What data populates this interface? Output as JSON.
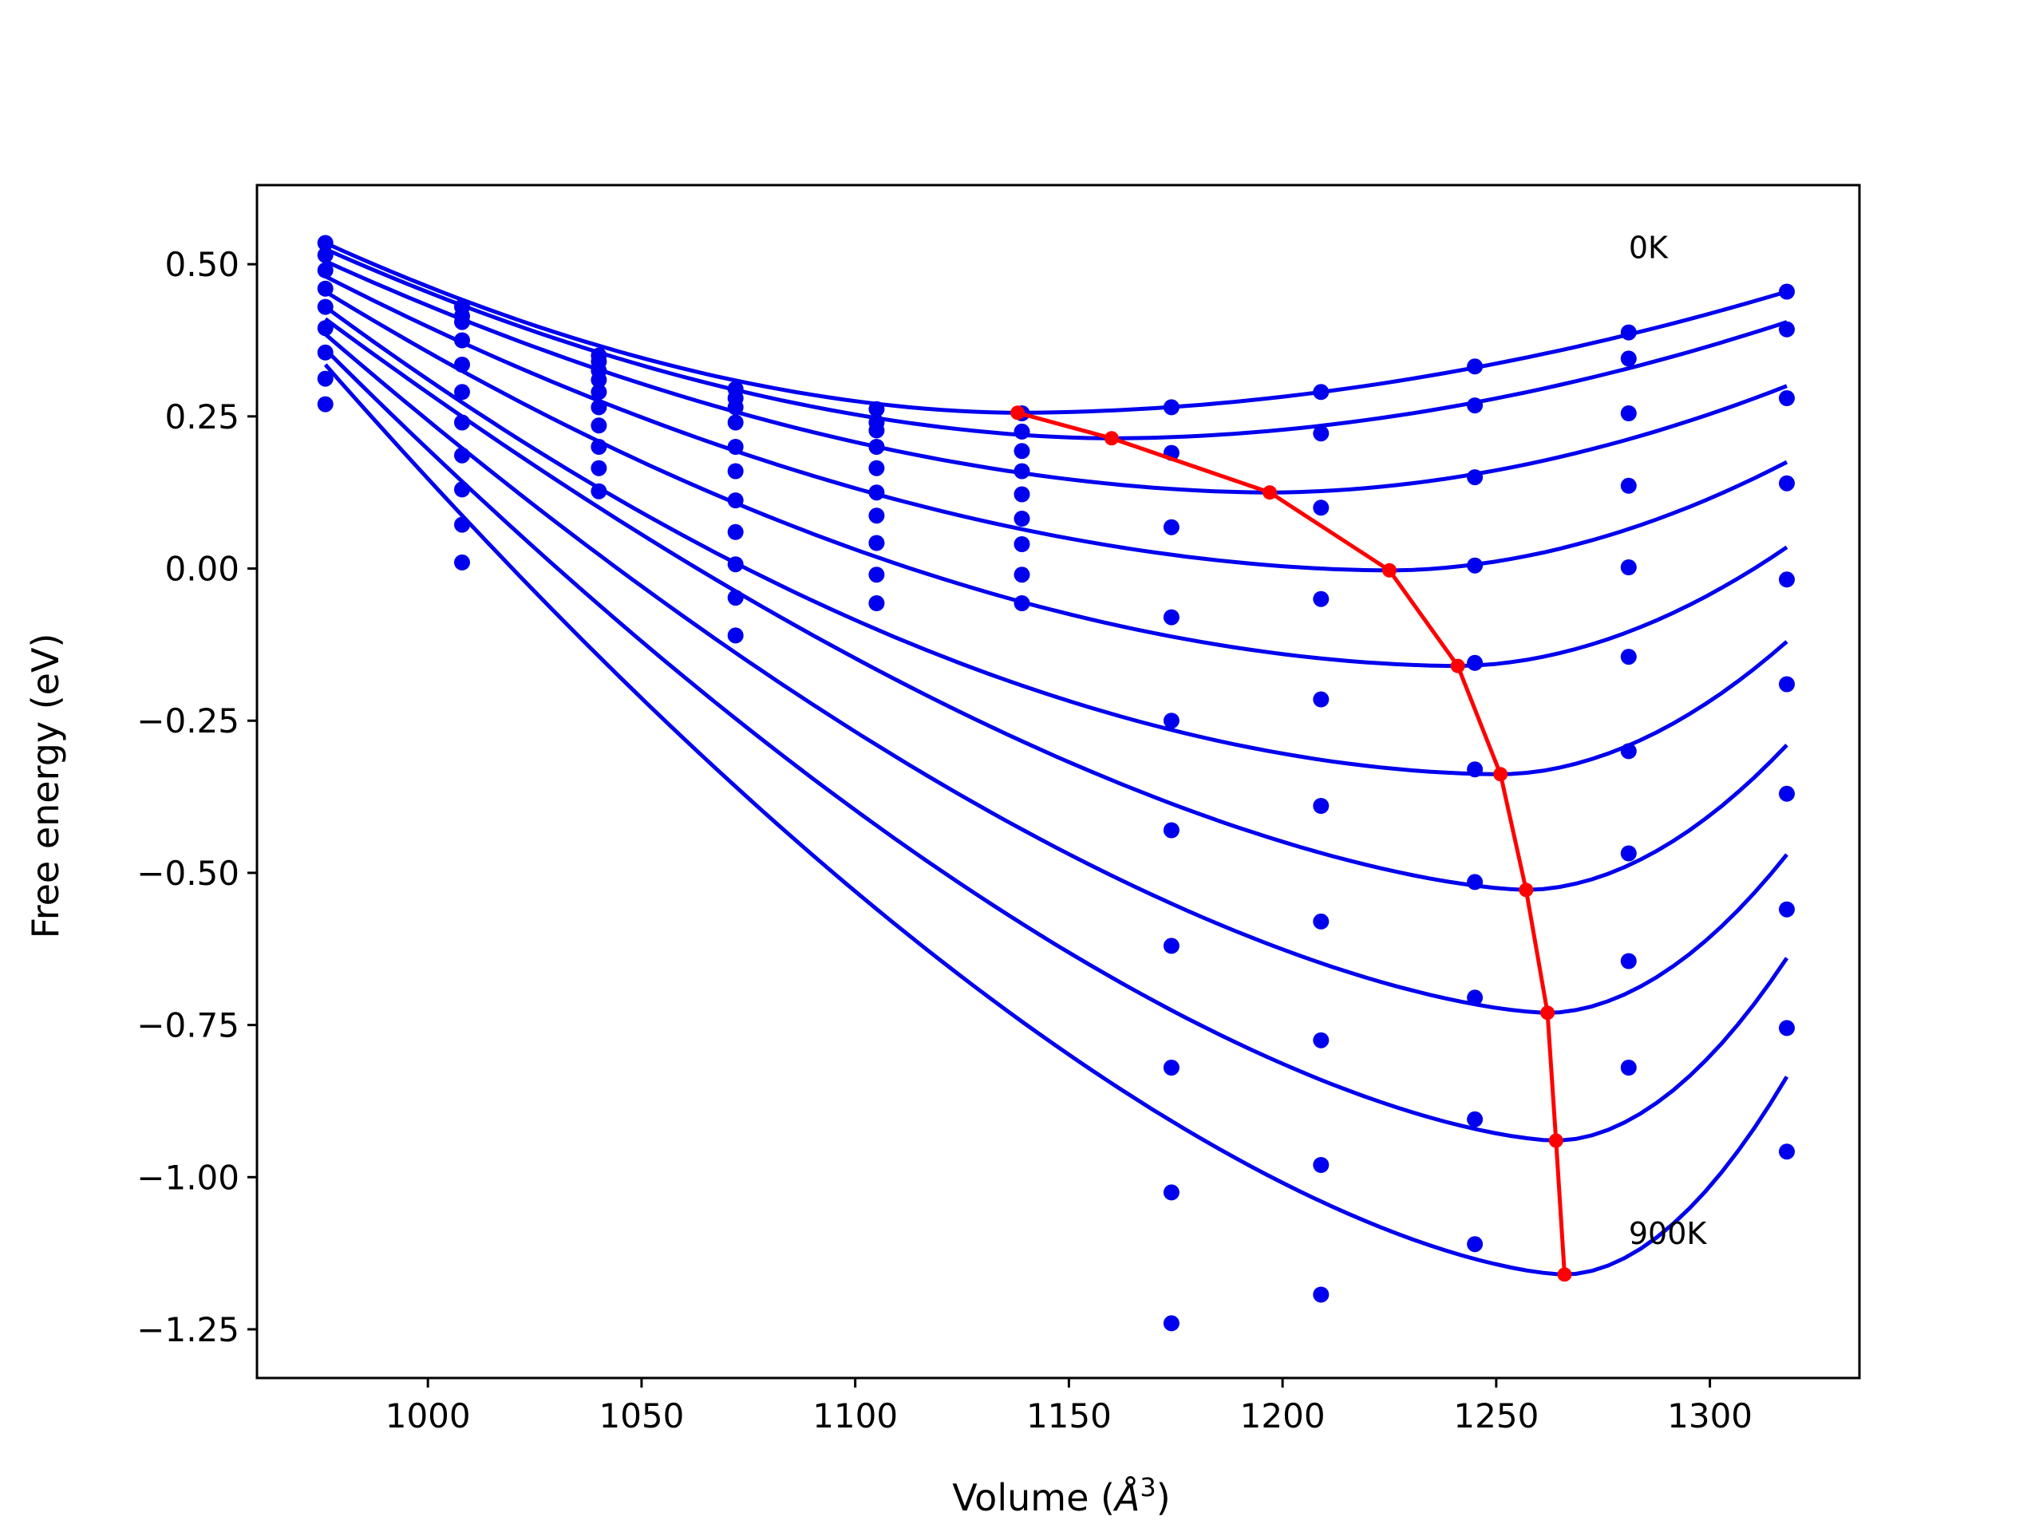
{
  "chart_data": {
    "type": "line",
    "xlabel_main": "Volume (",
    "xlabel_unit": "Å",
    "xlabel_exp": "3",
    "xlabel_close": ")",
    "ylabel": "Free energy (eV)",
    "xlim": [
      960,
      1335
    ],
    "ylim": [
      -1.33,
      0.63
    ],
    "x_ticks": [
      1000,
      1050,
      1100,
      1150,
      1200,
      1250,
      1300
    ],
    "x_tick_labels": [
      "1000",
      "1050",
      "1100",
      "1150",
      "1200",
      "1250",
      "1300"
    ],
    "y_ticks": [
      0.5,
      0.25,
      0.0,
      -0.25,
      -0.5,
      -0.75,
      -1.0,
      -1.25
    ],
    "y_tick_labels": [
      "0.50",
      "0.25",
      "0.00",
      "−0.25",
      "−0.50",
      "−0.75",
      "−1.00",
      "−1.25"
    ],
    "grid": false,
    "legend": "none",
    "annotations": [
      {
        "text": "0K",
        "x": 1281,
        "y": 0.51
      },
      {
        "text": "900K",
        "x": 1281,
        "y": -1.11
      }
    ],
    "colors": {
      "fit": "#0000ee",
      "points": "#0000ee",
      "minima": "#ff0000"
    },
    "x_volumes": [
      976,
      1008,
      1040,
      1072,
      1105,
      1139,
      1174,
      1209,
      1245,
      1281,
      1318
    ],
    "series": [
      {
        "minimum": [
          1138,
          0.256
        ],
        "points": [
          0.535,
          0.43,
          0.35,
          0.295,
          0.262,
          0.255,
          0.265,
          0.29,
          0.332,
          0.388,
          0.455
        ]
      },
      {
        "minimum": [
          1160,
          0.214
        ],
        "points": [
          0.515,
          0.415,
          0.34,
          0.28,
          0.24,
          0.225,
          0.19,
          0.222,
          0.268,
          0.345,
          0.393
        ]
      },
      {
        "minimum": [
          1197,
          0.125
        ],
        "points": [
          0.49,
          0.405,
          0.325,
          0.265,
          0.227,
          0.193,
          0.068,
          0.1,
          0.15,
          0.255,
          0.28
        ]
      },
      {
        "minimum": [
          1225,
          -0.003
        ],
        "points": [
          0.46,
          0.375,
          0.31,
          0.24,
          0.2,
          0.16,
          -0.08,
          -0.05,
          0.005,
          0.136,
          0.14
        ]
      },
      {
        "minimum": [
          1241,
          -0.16
        ],
        "points": [
          0.43,
          0.335,
          0.29,
          0.2,
          0.165,
          0.122,
          -0.25,
          -0.215,
          -0.155,
          0.002,
          -0.018
        ]
      },
      {
        "minimum": [
          1251,
          -0.338
        ],
        "points": [
          0.395,
          0.29,
          0.265,
          0.16,
          0.125,
          0.082,
          -0.43,
          -0.39,
          -0.33,
          -0.145,
          -0.19
        ]
      },
      {
        "minimum": [
          1257,
          -0.528
        ],
        "points": [
          0.355,
          0.24,
          0.235,
          0.112,
          0.087,
          0.04,
          -0.62,
          -0.58,
          -0.515,
          -0.3,
          -0.37
        ]
      },
      {
        "minimum": [
          1262,
          -0.73
        ],
        "points": [
          0.312,
          0.186,
          0.2,
          0.06,
          0.042,
          -0.01,
          -0.82,
          -0.775,
          -0.705,
          -0.468,
          -0.56
        ]
      },
      {
        "minimum": [
          1264,
          -0.94
        ],
        "points": [
          0.27,
          0.13,
          0.165,
          0.007,
          -0.01,
          -0.057,
          -1.025,
          -0.98,
          -0.905,
          -0.645,
          -0.755
        ]
      },
      {
        "minimum": [
          1266,
          -1.16
        ],
        "points": [
          null,
          0.072,
          0.127,
          -0.048,
          -0.057,
          null,
          -1.24,
          -1.193,
          -1.11,
          -0.82,
          -0.958
        ]
      },
      {
        "minimum": null,
        "points": [
          null,
          0.01,
          null,
          -0.11,
          null,
          null,
          null,
          null,
          null,
          null,
          null
        ]
      }
    ]
  }
}
